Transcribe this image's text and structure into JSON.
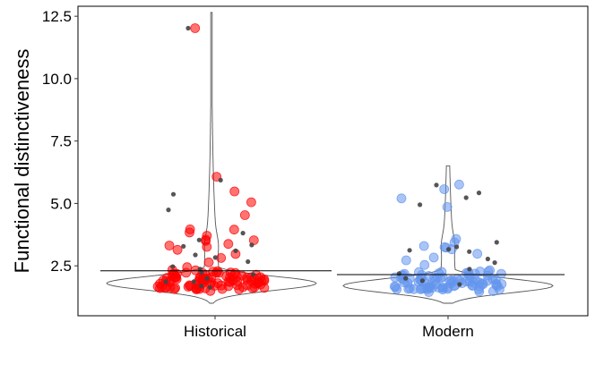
{
  "chart_data": {
    "type": "scatter",
    "subtype": "violin-with-jitter",
    "title": "",
    "xlabel": "",
    "ylabel": "Functional distinctiveness",
    "categories": [
      "Historical",
      "Modern"
    ],
    "ylim": [
      0.5,
      12.9
    ],
    "yticks": [
      "2.5",
      "5.0",
      "7.5",
      "10.0",
      "12.5"
    ],
    "ytick_values": [
      2.5,
      5.0,
      7.5,
      10.0,
      12.5
    ],
    "grid": false,
    "legend": "none",
    "colors": {
      "Historical": "#ff0000",
      "Modern": "#6495ed",
      "dark_points": "#444444",
      "violin_outline": "#555555"
    },
    "mean_lines": [
      {
        "category": "Historical",
        "value": 2.3
      },
      {
        "category": "Modern",
        "value": 2.15
      }
    ],
    "series": [
      {
        "name": "Historical",
        "summary": {
          "min": 1.4,
          "median": 1.9,
          "max": 12.0
        },
        "highlight_values": [
          1.5,
          1.6,
          1.6,
          1.7,
          1.7,
          1.7,
          1.8,
          1.8,
          1.8,
          1.8,
          1.9,
          1.9,
          1.9,
          2.0,
          2.0,
          2.0,
          2.1,
          2.1,
          2.2,
          2.2,
          2.3,
          2.4,
          2.5,
          2.6,
          2.8,
          3.0,
          3.1,
          3.2,
          3.3,
          3.4,
          3.5,
          3.5,
          3.6,
          3.7,
          3.8,
          3.9,
          4.0,
          4.6,
          5.1,
          5.5,
          6.0,
          12.0
        ],
        "other_values": [
          1.6,
          1.7,
          1.8,
          1.9,
          2.0,
          2.1,
          2.2,
          2.3,
          2.5,
          2.6,
          2.8,
          2.9,
          3.1,
          3.3,
          3.4,
          3.6,
          3.8,
          4.7,
          5.4,
          6.0,
          12.0
        ]
      },
      {
        "name": "Modern",
        "summary": {
          "min": 1.4,
          "median": 1.8,
          "max": 5.8
        },
        "highlight_values": [
          1.4,
          1.5,
          1.5,
          1.6,
          1.6,
          1.7,
          1.7,
          1.7,
          1.8,
          1.8,
          1.8,
          1.9,
          1.9,
          2.0,
          2.0,
          2.1,
          2.2,
          2.3,
          2.5,
          2.7,
          2.9,
          3.0,
          3.1,
          3.2,
          3.2,
          3.3,
          3.4,
          3.6,
          4.8,
          5.2,
          5.5,
          5.7
        ],
        "other_values": [
          1.7,
          1.9,
          2.0,
          2.2,
          2.4,
          2.6,
          2.8,
          3.0,
          3.1,
          3.2,
          3.3,
          3.5,
          4.9,
          5.2,
          5.4,
          5.7
        ]
      }
    ]
  }
}
